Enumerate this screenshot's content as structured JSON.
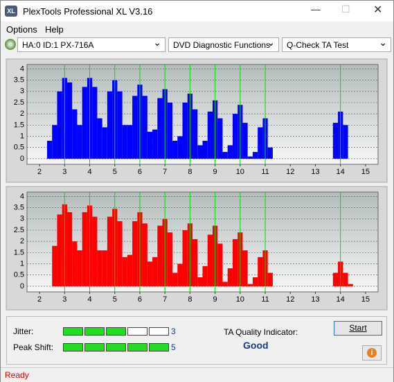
{
  "window": {
    "title": "PlexTools Professional XL V3.16"
  },
  "menu": [
    "Options",
    "Help"
  ],
  "toolbar": {
    "drive": "HA:0 ID:1  PX-716A",
    "function": "DVD Diagnostic Functions",
    "test": "Q-Check TA Test"
  },
  "chart_data": [
    {
      "type": "bar",
      "color": "#0000ff",
      "vline_color": "#00dd00",
      "x": [
        2.4,
        2.6,
        2.8,
        3.0,
        3.2,
        3.4,
        3.6,
        3.8,
        4.0,
        4.2,
        4.4,
        4.6,
        4.8,
        5.0,
        5.2,
        5.4,
        5.6,
        5.8,
        6.0,
        6.2,
        6.4,
        6.6,
        6.8,
        7.0,
        7.2,
        7.4,
        7.6,
        7.8,
        8.0,
        8.2,
        8.4,
        8.6,
        8.8,
        9.0,
        9.2,
        9.4,
        9.6,
        9.8,
        10.0,
        10.2,
        10.4,
        10.6,
        10.8,
        11.0,
        11.2,
        11.4,
        11.6,
        11.8,
        12.0,
        12.2,
        12.4,
        12.6,
        12.8,
        13.0,
        13.2,
        13.4,
        13.6,
        13.8,
        14.0,
        14.2,
        14.4,
        14.6
      ],
      "values": [
        0.8,
        1.5,
        3.0,
        3.6,
        3.4,
        2.2,
        1.5,
        3.2,
        3.6,
        3.2,
        1.8,
        1.4,
        3.0,
        3.5,
        3.0,
        1.5,
        1.5,
        2.8,
        3.3,
        2.8,
        1.2,
        1.3,
        2.7,
        3.1,
        2.5,
        0.8,
        1.0,
        2.5,
        2.9,
        2.2,
        0.6,
        0.8,
        2.1,
        2.6,
        1.8,
        0.3,
        0.6,
        2.0,
        2.4,
        1.6,
        0.1,
        0.3,
        1.4,
        1.8,
        0.5,
        0,
        0,
        0,
        0,
        0,
        0,
        0,
        0,
        0,
        0,
        0,
        0,
        1.6,
        2.1,
        1.5,
        0,
        0
      ],
      "vlines": [
        3,
        4,
        5,
        6,
        7,
        8,
        9,
        10,
        11,
        14
      ],
      "xlim": [
        1.5,
        15.5
      ],
      "ylim": [
        -0.25,
        4.2
      ],
      "xticks": [
        2,
        3,
        4,
        5,
        6,
        7,
        8,
        9,
        10,
        11,
        12,
        13,
        14,
        15
      ],
      "yticks": [
        0,
        0.5,
        1,
        1.5,
        2,
        2.5,
        3,
        3.5,
        4
      ],
      "grid": true
    },
    {
      "type": "bar",
      "color": "#ff0000",
      "vline_color": "#00dd00",
      "x": [
        2.4,
        2.6,
        2.8,
        3.0,
        3.2,
        3.4,
        3.6,
        3.8,
        4.0,
        4.2,
        4.4,
        4.6,
        4.8,
        5.0,
        5.2,
        5.4,
        5.6,
        5.8,
        6.0,
        6.2,
        6.4,
        6.6,
        6.8,
        7.0,
        7.2,
        7.4,
        7.6,
        7.8,
        8.0,
        8.2,
        8.4,
        8.6,
        8.8,
        9.0,
        9.2,
        9.4,
        9.6,
        9.8,
        10.0,
        10.2,
        10.4,
        10.6,
        10.8,
        11.0,
        11.2,
        11.4,
        11.6,
        11.8,
        12.0,
        12.2,
        12.4,
        12.6,
        12.8,
        13.0,
        13.2,
        13.4,
        13.6,
        13.8,
        14.0,
        14.2,
        14.4,
        14.6
      ],
      "values": [
        0,
        1.8,
        3.2,
        3.65,
        3.3,
        2.0,
        1.6,
        3.3,
        3.6,
        3.1,
        1.6,
        1.6,
        3.1,
        3.45,
        2.9,
        1.3,
        1.4,
        2.9,
        3.3,
        2.8,
        1.1,
        1.3,
        2.7,
        3.0,
        2.4,
        0.6,
        1.0,
        2.5,
        2.8,
        2.1,
        0.4,
        0.9,
        2.3,
        2.7,
        1.9,
        0.2,
        0.8,
        2.1,
        2.4,
        1.6,
        0.1,
        0.4,
        1.3,
        1.6,
        0.6,
        0,
        0,
        0,
        0,
        0,
        0,
        0,
        0,
        0,
        0,
        0,
        0,
        0.6,
        1.1,
        0.6,
        0.1,
        0
      ],
      "vlines": [
        3,
        4,
        5,
        6,
        7,
        8,
        9,
        10,
        11,
        14
      ],
      "xlim": [
        1.5,
        15.5
      ],
      "ylim": [
        -0.25,
        4.2
      ],
      "xticks": [
        2,
        3,
        4,
        5,
        6,
        7,
        8,
        9,
        10,
        11,
        12,
        13,
        14,
        15
      ],
      "yticks": [
        0,
        0.5,
        1,
        1.5,
        2,
        2.5,
        3,
        3.5,
        4
      ],
      "grid": true
    }
  ],
  "panel": {
    "jitter_label": "Jitter:",
    "jitter": 3,
    "peak_shift_label": "Peak Shift:",
    "peak_shift": 5,
    "segments": 5,
    "ta_label": "TA Quality Indicator:",
    "ta_value": "Good",
    "start": "Start"
  },
  "status": "Ready"
}
